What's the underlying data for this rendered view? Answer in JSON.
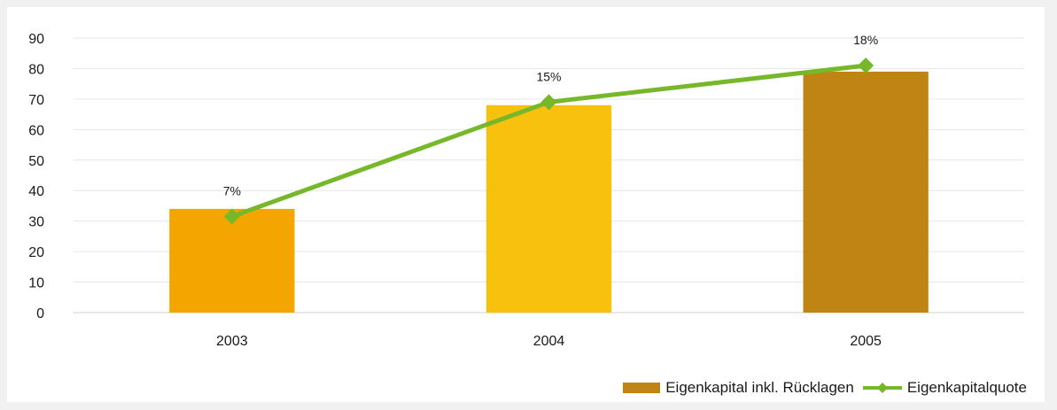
{
  "chart_data": {
    "type": "bar",
    "categories": [
      "2003",
      "2004",
      "2005"
    ],
    "ylim": [
      0,
      90
    ],
    "yticks": [
      0,
      10,
      20,
      30,
      40,
      50,
      60,
      70,
      80,
      90
    ],
    "grid": true,
    "legend_position": "bottom-right",
    "series": [
      {
        "name": "Eigenkapital inkl. Rücklagen",
        "type": "bar",
        "values": [
          34,
          68,
          79
        ],
        "colors": [
          "#f5a500",
          "#f8c10e",
          "#bf8414"
        ]
      },
      {
        "name": "Eigenkapitalquote",
        "type": "line",
        "values": [
          31.5,
          69,
          81
        ],
        "labels": [
          "7%",
          "15%",
          "18%"
        ],
        "color": "#76b82a"
      }
    ]
  }
}
